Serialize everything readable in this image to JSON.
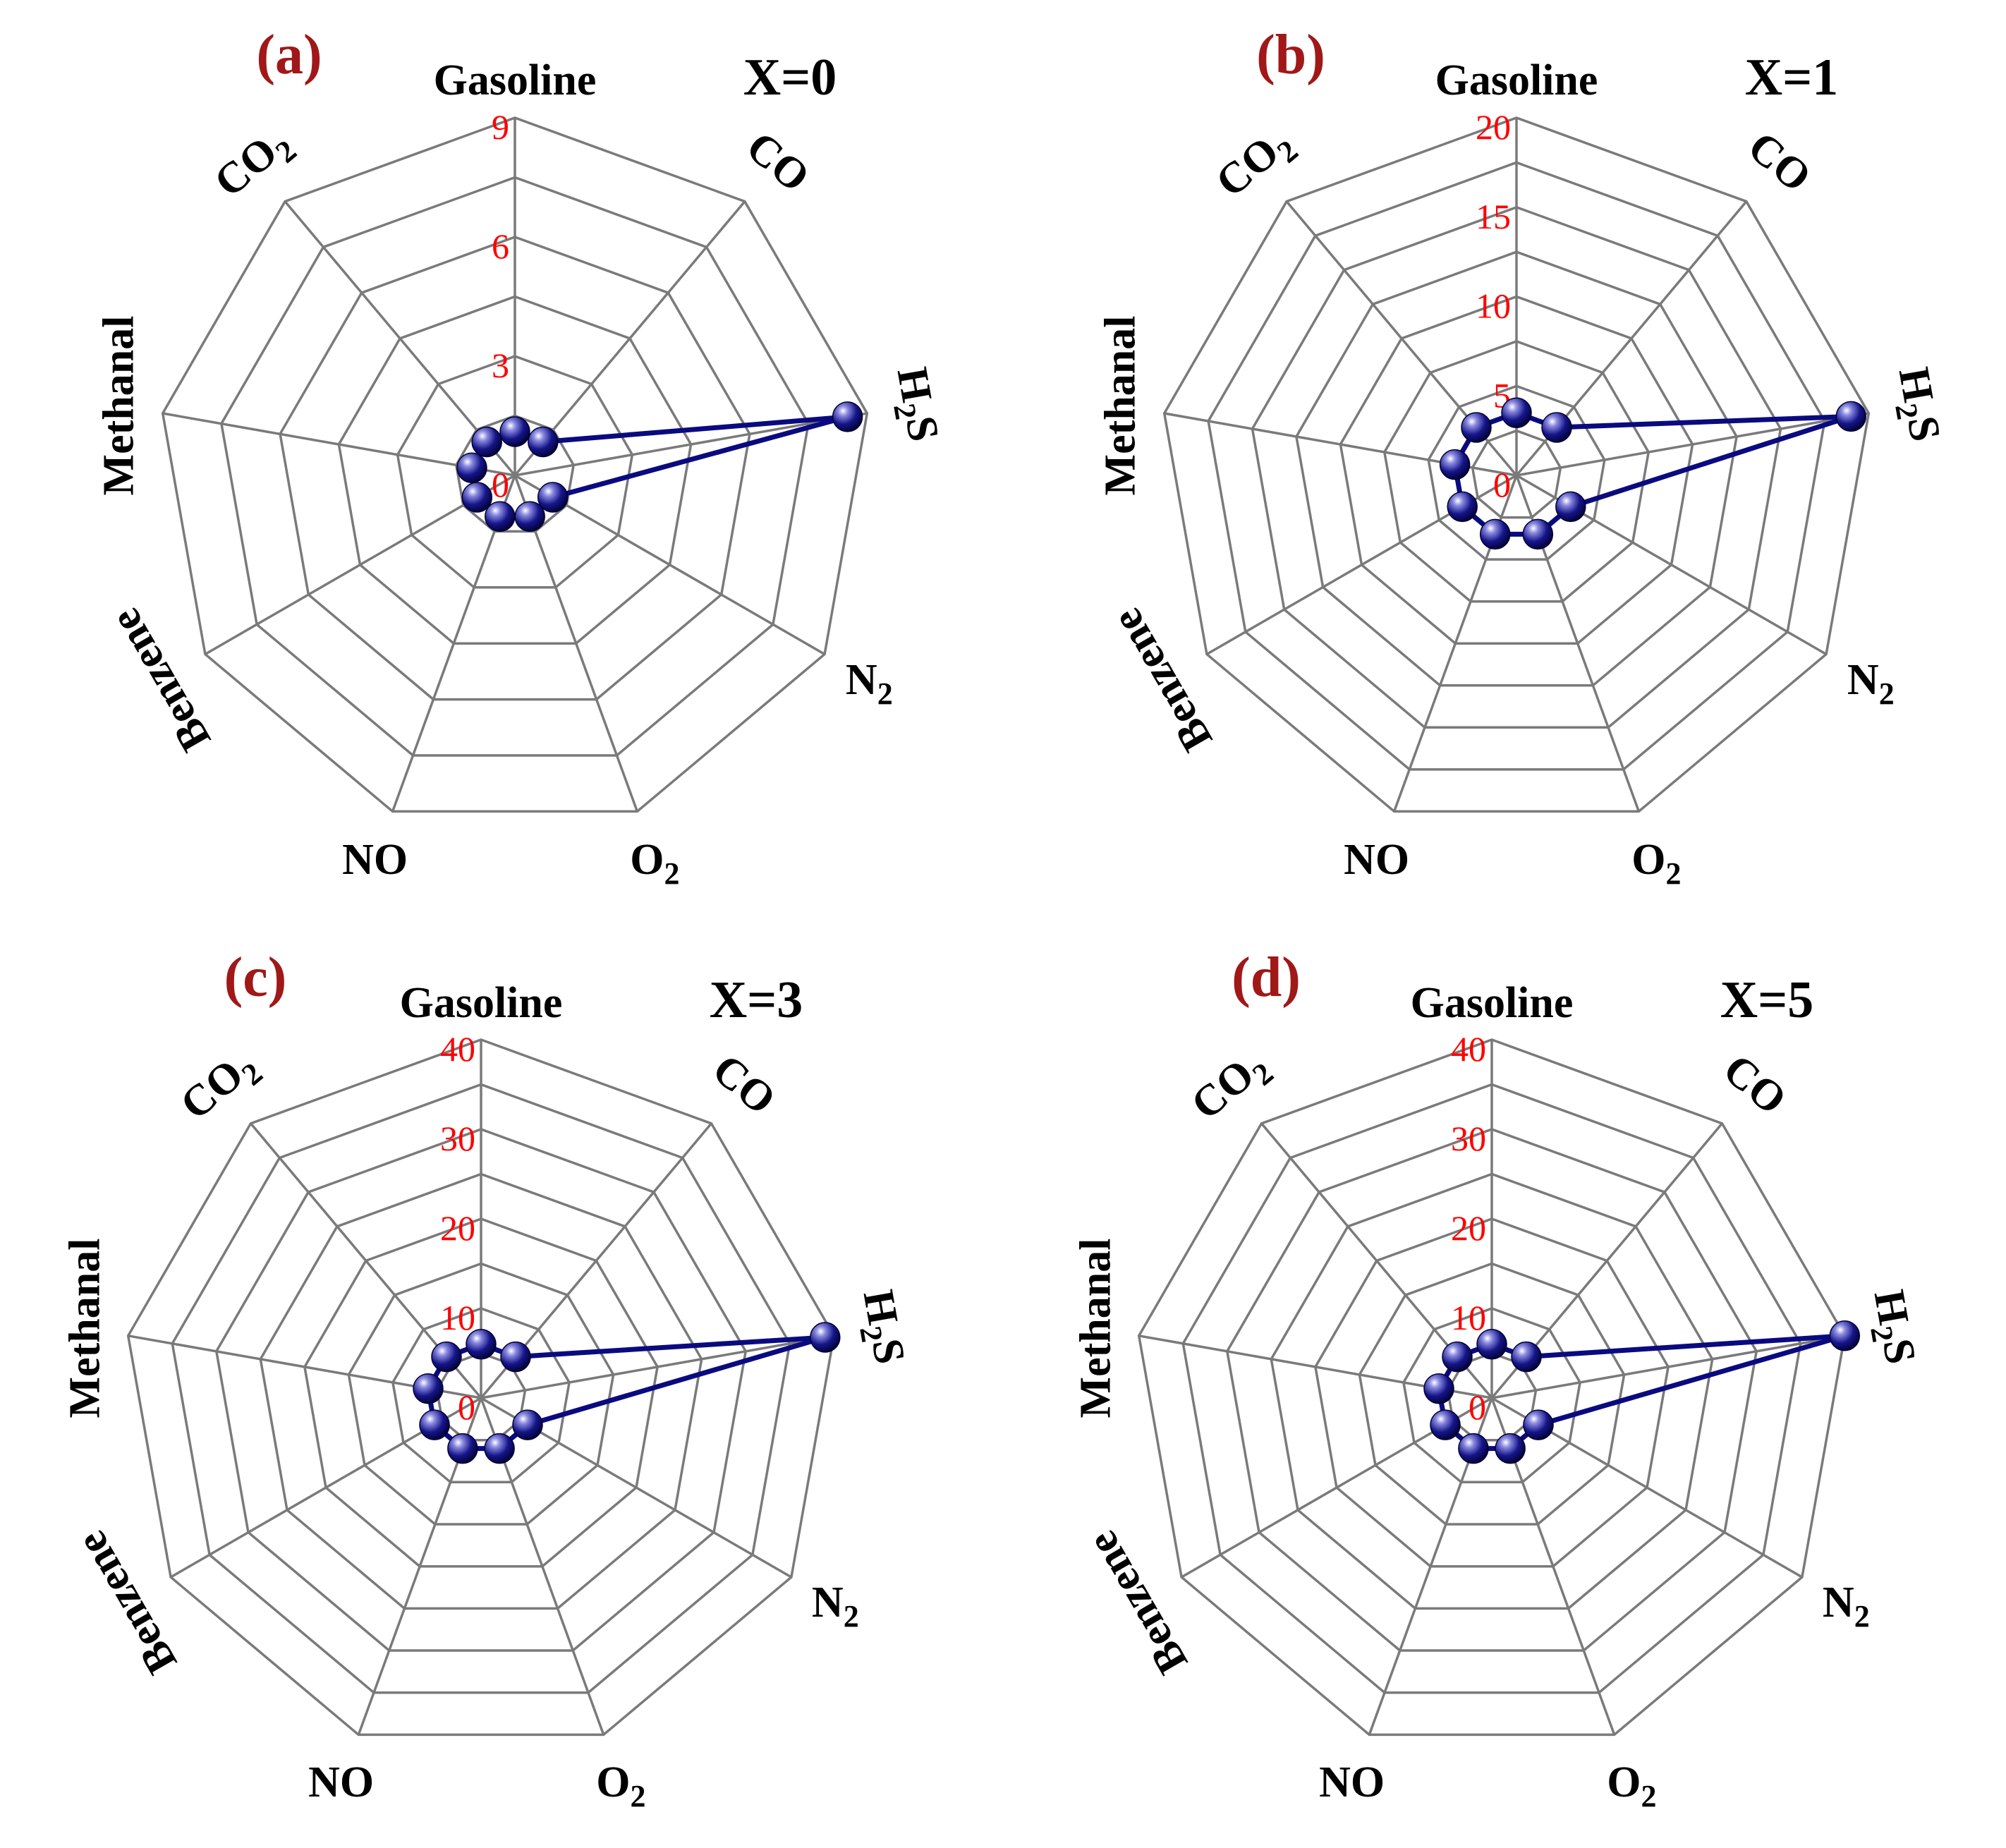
{
  "chart_data": [
    {
      "type": "radar",
      "panel": "(a)",
      "label": "X=0",
      "axes": [
        "Gasoline",
        "CO",
        "H2S",
        "N2",
        "O2",
        "NO",
        "Benzene",
        "Methanal",
        "CO2"
      ],
      "ticks": [
        "0",
        "3",
        "6",
        "9"
      ],
      "rmax": 9,
      "values": [
        1.1,
        1.1,
        8.5,
        1.1,
        1.1,
        1.1,
        1.1,
        1.1,
        1.1
      ],
      "color": "#0a0a80"
    },
    {
      "type": "radar",
      "panel": "(b)",
      "label": "X=1",
      "axes": [
        "Gasoline",
        "CO",
        "H2S",
        "N2",
        "O2",
        "NO",
        "Benzene",
        "Methanal",
        "CO2"
      ],
      "ticks": [
        "0",
        "5",
        "10",
        "15",
        "20"
      ],
      "rmax": 20,
      "values": [
        3.5,
        3.5,
        19,
        3.5,
        3.5,
        3.5,
        3.5,
        3.5,
        3.5
      ],
      "color": "#0a0a80"
    },
    {
      "type": "radar",
      "panel": "(c)",
      "label": "X=3",
      "axes": [
        "Gasoline",
        "CO",
        "H2S",
        "N2",
        "O2",
        "NO",
        "Benzene",
        "Methanal",
        "CO2"
      ],
      "ticks": [
        "0",
        "10",
        "20",
        "30",
        "40"
      ],
      "rmax": 40,
      "values": [
        6,
        6,
        39,
        6,
        6,
        6,
        6,
        6,
        6
      ],
      "color": "#0a0a80"
    },
    {
      "type": "radar",
      "panel": "(d)",
      "label": "X=5",
      "axes": [
        "Gasoline",
        "CO",
        "H2S",
        "N2",
        "O2",
        "NO",
        "Benzene",
        "Methanal",
        "CO2"
      ],
      "ticks": [
        "0",
        "10",
        "20",
        "30",
        "40"
      ],
      "rmax": 40,
      "values": [
        6,
        6,
        40,
        6,
        6,
        6,
        6,
        6,
        6
      ],
      "color": "#0a0a80"
    }
  ]
}
